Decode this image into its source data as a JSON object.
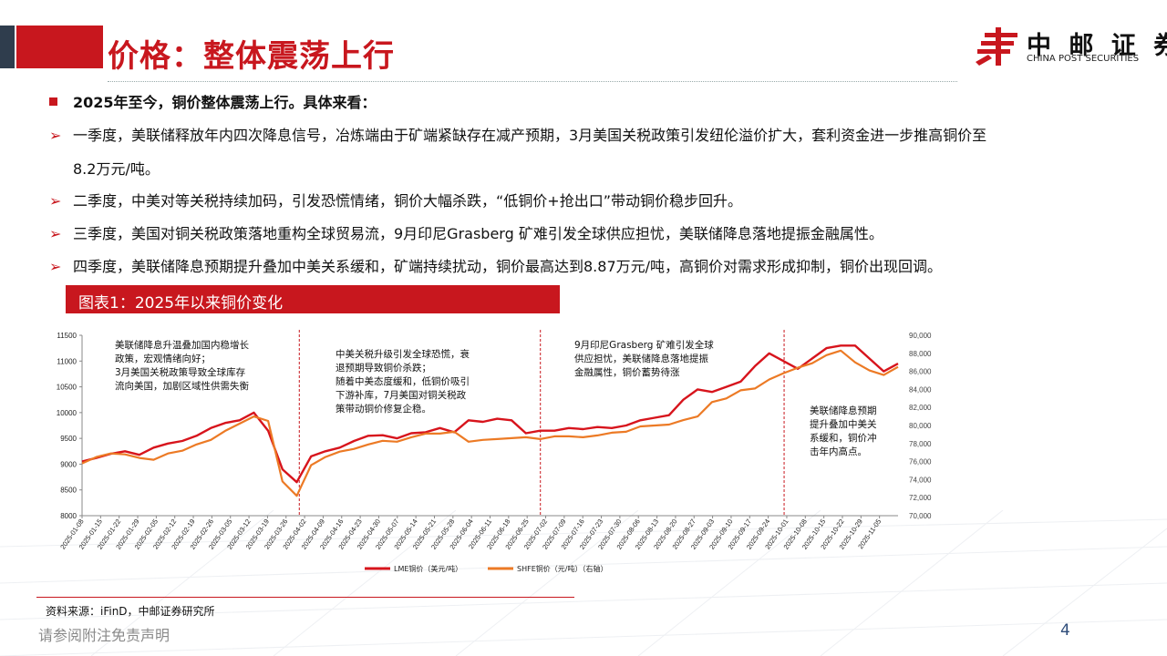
{
  "slide": {
    "title": "价格：整体震荡上行",
    "page_number": "4",
    "disclaimer": "请参阅附注免责声明"
  },
  "logo": {
    "name_cn": "中 邮 证 券",
    "name_en": "CHINA POST SECURITIES",
    "brand_color": "#c8171e"
  },
  "bullets": {
    "summary": "2025年至今，铜价整体震荡上行。具体来看：",
    "q1_line1": "一季度，美联储释放年内四次降息信号，冶炼端由于矿端紧缺存在减产预期，3月美国关税政策引发纽伦溢价扩大，套利资金进一步推高铜价至",
    "q1_line2": "8.2万元/吨。",
    "q2": "二季度，中美对等关税持续加码，引发恐慌情绪，铜价大幅杀跌，“低铜价+抢出口”带动铜价稳步回升。",
    "q3": "三季度，美国对铜关税政策落地重构全球贸易流，9月印尼Grasberg 矿难引发全球供应担忧，美联储降息落地提振金融属性。",
    "q4": "四季度，美联储降息预期提升叠加中美关系缓和，矿端持续扰动，铜价最高达到8.87万元/吨，高铜价对需求形成抑制，铜价出现回调。",
    "arrow_glyph": "➢"
  },
  "figure": {
    "title": "图表1：2025年以来铜价变化",
    "source": "资料来源：iFinD，中邮证券研究所"
  },
  "chart_data": {
    "type": "line",
    "x_ticks": [
      "2025-01-08",
      "2025-01-15",
      "2025-01-22",
      "2025-01-29",
      "2025-02-05",
      "2025-02-12",
      "2025-02-19",
      "2025-02-26",
      "2025-03-05",
      "2025-03-12",
      "2025-03-19",
      "2025-03-26",
      "2025-04-02",
      "2025-04-09",
      "2025-04-16",
      "2025-04-23",
      "2025-04-30",
      "2025-05-07",
      "2025-05-14",
      "2025-05-21",
      "2025-05-28",
      "2025-06-04",
      "2025-06-11",
      "2025-06-18",
      "2025-06-25",
      "2025-07-02",
      "2025-07-09",
      "2025-07-16",
      "2025-07-23",
      "2025-07-30",
      "2025-08-06",
      "2025-08-13",
      "2025-08-20",
      "2025-08-27",
      "2025-09-03",
      "2025-09-10",
      "2025-09-17",
      "2025-09-24",
      "2025-10-01",
      "2025-10-08",
      "2025-10-15",
      "2025-10-22",
      "2025-10-29",
      "2025-11-05"
    ],
    "y_left": {
      "min": 8000,
      "max": 11500,
      "ticks": [
        "8000",
        "8500",
        "9000",
        "9500",
        "10000",
        "10500",
        "11000",
        "11500"
      ]
    },
    "y_right": {
      "min": 70000,
      "max": 90000,
      "ticks": [
        "70,000",
        "72,000",
        "74,000",
        "76,000",
        "78,000",
        "80,000",
        "82,000",
        "84,000",
        "86,000",
        "88,000",
        "90,000"
      ]
    },
    "series": [
      {
        "name": "LME铜价（美元/吨）",
        "axis": "left",
        "color": "#d7141c",
        "values": [
          9050,
          9120,
          9200,
          9250,
          9180,
          9320,
          9400,
          9450,
          9550,
          9700,
          9800,
          9850,
          10000,
          9650,
          8900,
          8650,
          9150,
          9250,
          9320,
          9450,
          9550,
          9560,
          9500,
          9600,
          9620,
          9700,
          9620,
          9850,
          9820,
          9880,
          9850,
          9600,
          9650,
          9650,
          9700,
          9680,
          9720,
          9700,
          9750,
          9850,
          9900,
          9950,
          10250,
          10450,
          10400,
          10500,
          10600,
          10900,
          11150,
          11000,
          10850,
          11050,
          11250,
          11300,
          11300,
          11050,
          10800,
          10950
        ]
      },
      {
        "name": "SHFE铜价（元/吨）（右轴）",
        "axis": "right",
        "color": "#ec7a25",
        "values": [
          75800,
          76500,
          76900,
          76800,
          76400,
          76200,
          76900,
          77200,
          77900,
          78400,
          79400,
          80200,
          81000,
          80500,
          73800,
          72200,
          75600,
          76500,
          77100,
          77400,
          77900,
          78300,
          78200,
          78700,
          79100,
          79100,
          79300,
          78200,
          78400,
          78500,
          78600,
          78700,
          78500,
          78800,
          78800,
          78700,
          78900,
          79200,
          79300,
          79900,
          80000,
          80100,
          80600,
          81000,
          82600,
          83000,
          83900,
          84100,
          85100,
          85800,
          86400,
          86900,
          87800,
          88300,
          87000,
          86100,
          85600,
          86500
        ]
      }
    ],
    "x_start": "2025-01-08",
    "x_end": "2025-11-12",
    "legend": "bottom-center",
    "grid": false,
    "dividers_after": [
      "2025-03-31",
      "2025-06-30",
      "2025-09-30"
    ],
    "annotations": [
      {
        "period": "Q1",
        "lines": [
          "美联储降息升温叠加国内稳增长",
          "政策，宏观情绪向好；",
          "3月美国关税政策导致全球库存",
          "流向美国，加剧区域性供需失衡"
        ]
      },
      {
        "period": "Q2",
        "lines": [
          "中美关税升级引发全球恐慌，衰",
          "退预期导致铜价杀跌；",
          "随着中美态度缓和，低铜价吸引",
          "下游补库，7月美国对铜关税政",
          "策带动铜价修复企稳。"
        ]
      },
      {
        "period": "Q3",
        "lines": [
          "9月印尼Grasberg 矿难引发全球",
          "供应担忧，美联储降息落地提振",
          "金融属性，铜价蓄势待涨"
        ]
      },
      {
        "period": "Q4",
        "lines": [
          "美联储降息预期",
          "提升叠加中美关",
          "系缓和，铜价冲",
          "击年内高点。"
        ]
      }
    ]
  }
}
